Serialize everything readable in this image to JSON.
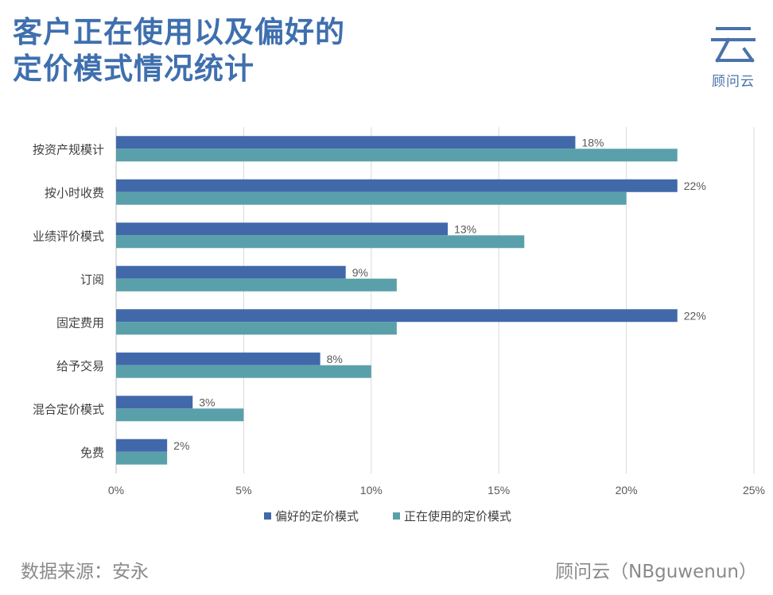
{
  "header": {
    "title_line1": "客户正在使用以及偏好的",
    "title_line2": "定价模式情况统计",
    "logo_text": "顾问云"
  },
  "chart_data": {
    "type": "bar",
    "orientation": "horizontal",
    "title": "客户正在使用以及偏好的定价模式情况统计",
    "categories": [
      "按资产规模计",
      "按小时收费",
      "业绩评价模式",
      "订阅",
      "固定费用",
      "给予交易",
      "混合定价模式",
      "免费"
    ],
    "series": [
      {
        "name": "偏好的定价模式",
        "color": "#4169aa",
        "values": [
          18,
          22,
          13,
          9,
          22,
          8,
          3,
          2
        ],
        "labels": [
          "18%",
          "22%",
          "13%",
          "9%",
          "22%",
          "8%",
          "3%",
          "2%"
        ]
      },
      {
        "name": "正在使用的定价模式",
        "color": "#5aa0aa",
        "values": [
          22,
          20,
          16,
          11,
          11,
          10,
          5,
          2
        ]
      }
    ],
    "xlim": [
      0,
      25
    ],
    "xticks": [
      0,
      5,
      10,
      15,
      20,
      25
    ],
    "xtick_labels": [
      "0%",
      "5%",
      "10%",
      "15%",
      "20%",
      "25%"
    ],
    "grid": true,
    "legend": "bottom"
  },
  "footer": {
    "source": "数据来源：安永",
    "brand": "顾问云（NBguwenun）"
  }
}
